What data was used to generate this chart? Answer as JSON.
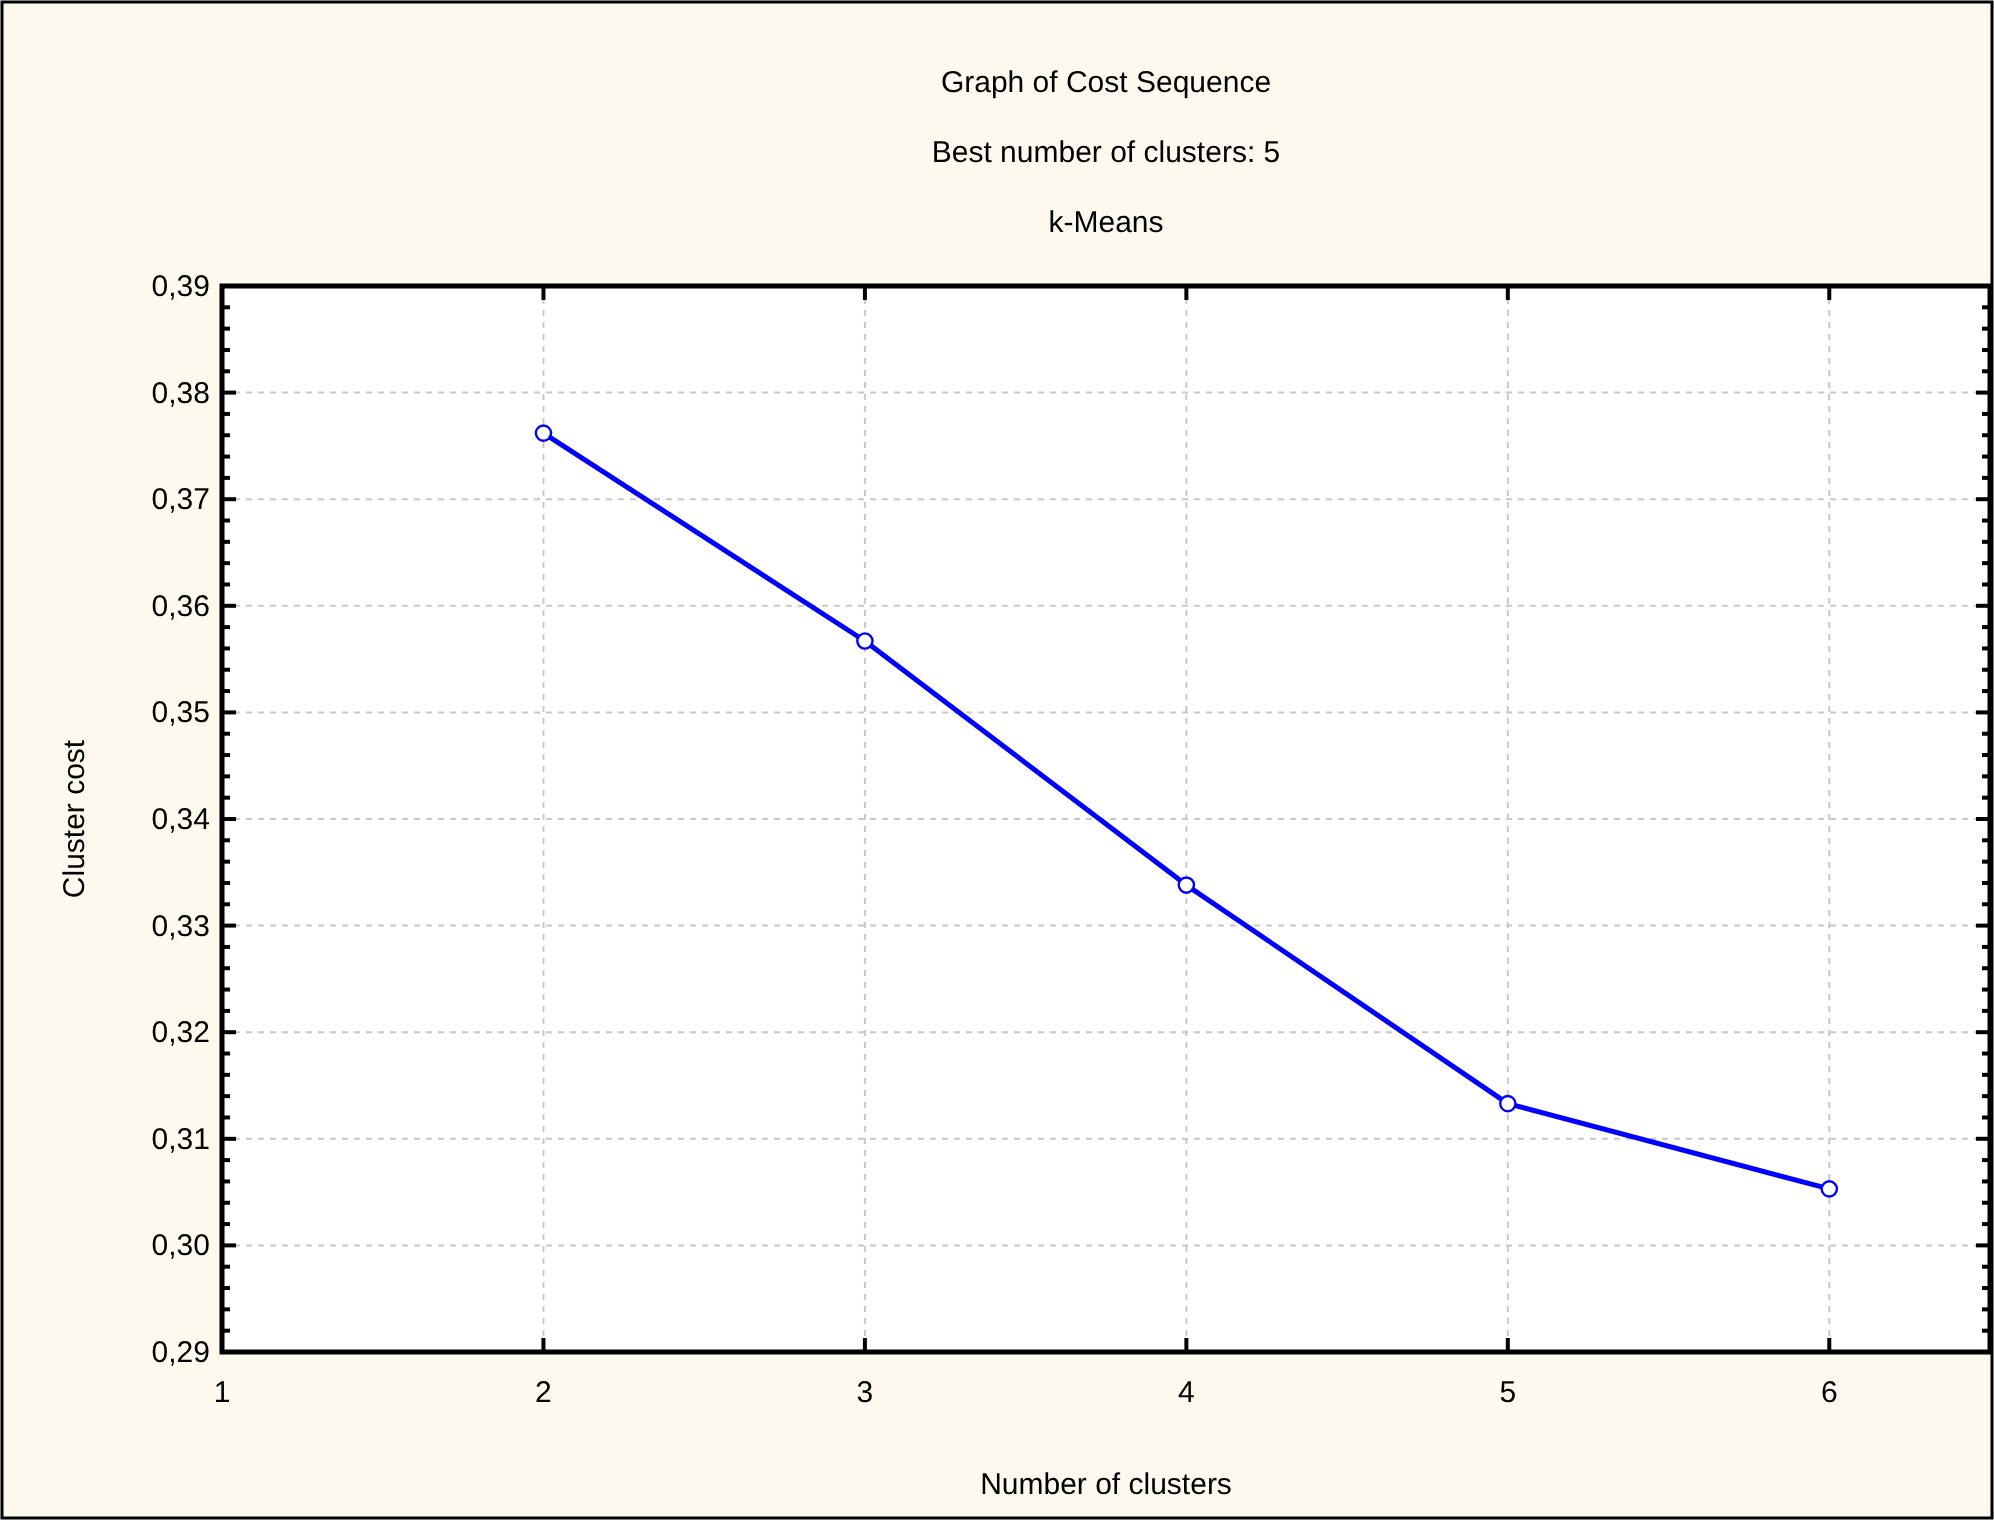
{
  "chart_data": {
    "type": "line",
    "title": "Graph of Cost Sequence",
    "subtitle": "Best number of clusters: 5",
    "annotations": [
      "k-Means"
    ],
    "xlabel": "Number of clusters",
    "ylabel": "Cluster cost",
    "x": [
      2,
      3,
      4,
      5,
      6
    ],
    "series": [
      {
        "color": "#0000ff",
        "values": [
          0.3762,
          0.3567,
          0.3338,
          0.3133,
          0.3053
        ]
      }
    ],
    "xlim": [
      1,
      6.5
    ],
    "xticks": [
      1,
      2,
      3,
      4,
      5,
      6
    ],
    "ylim": [
      0.29,
      0.39
    ],
    "yticks": [
      {
        "value": 0.29,
        "label": "0,29"
      },
      {
        "value": 0.3,
        "label": "0,30"
      },
      {
        "value": 0.31,
        "label": "0,31"
      },
      {
        "value": 0.32,
        "label": "0,32"
      },
      {
        "value": 0.33,
        "label": "0,33"
      },
      {
        "value": 0.34,
        "label": "0,34"
      },
      {
        "value": 0.35,
        "label": "0,35"
      },
      {
        "value": 0.36,
        "label": "0,36"
      },
      {
        "value": 0.37,
        "label": "0,37"
      },
      {
        "value": 0.38,
        "label": "0,38"
      },
      {
        "value": 0.39,
        "label": "0,39"
      },
      {
        "value": 0.292,
        "label": null
      },
      {
        "value": 0.294,
        "label": null
      },
      {
        "value": 0.296,
        "label": null
      },
      {
        "value": 0.298,
        "label": null
      },
      {
        "value": 0.302,
        "label": null
      },
      {
        "value": 0.304,
        "label": null
      },
      {
        "value": 0.306,
        "label": null
      },
      {
        "value": 0.308,
        "label": null
      },
      {
        "value": 0.312,
        "label": null
      },
      {
        "value": 0.314,
        "label": null
      },
      {
        "value": 0.316,
        "label": null
      },
      {
        "value": 0.318,
        "label": null
      },
      {
        "value": 0.322,
        "label": null
      },
      {
        "value": 0.324,
        "label": null
      },
      {
        "value": 0.326,
        "label": null
      },
      {
        "value": 0.328,
        "label": null
      },
      {
        "value": 0.332,
        "label": null
      },
      {
        "value": 0.334,
        "label": null
      },
      {
        "value": 0.336,
        "label": null
      },
      {
        "value": 0.338,
        "label": null
      },
      {
        "value": 0.342,
        "label": null
      },
      {
        "value": 0.344,
        "label": null
      },
      {
        "value": 0.346,
        "label": null
      },
      {
        "value": 0.348,
        "label": null
      },
      {
        "value": 0.352,
        "label": null
      },
      {
        "value": 0.354,
        "label": null
      },
      {
        "value": 0.356,
        "label": null
      },
      {
        "value": 0.358,
        "label": null
      },
      {
        "value": 0.362,
        "label": null
      },
      {
        "value": 0.364,
        "label": null
      },
      {
        "value": 0.366,
        "label": null
      },
      {
        "value": 0.368,
        "label": null
      },
      {
        "value": 0.372,
        "label": null
      },
      {
        "value": 0.374,
        "label": null
      },
      {
        "value": 0.376,
        "label": null
      },
      {
        "value": 0.378,
        "label": null
      },
      {
        "value": 0.382,
        "label": null
      },
      {
        "value": 0.384,
        "label": null
      },
      {
        "value": 0.386,
        "label": null
      },
      {
        "value": 0.388,
        "label": null
      }
    ],
    "grid": true,
    "marker": "circle",
    "line_style": "solid"
  }
}
